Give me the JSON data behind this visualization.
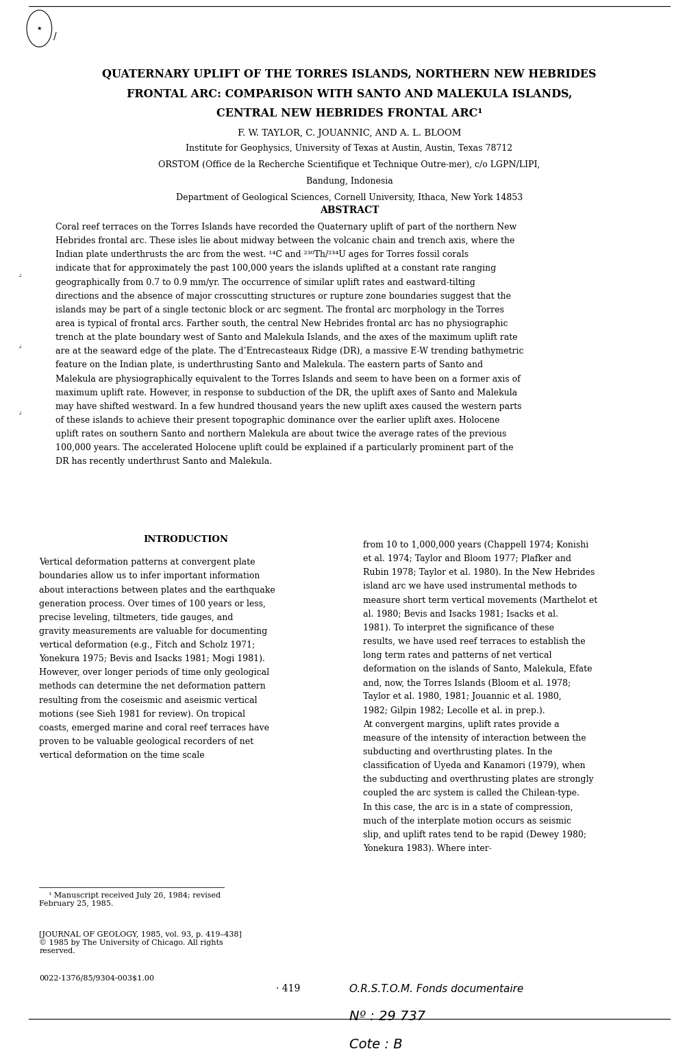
{
  "background_color": "#ffffff",
  "page_width": 10.2,
  "page_height": 15.31,
  "title_lines": [
    "QUATERNARY UPLIFT OF THE TORRES ISLANDS, NORTHERN NEW HEBRIDES",
    "FRONTAL ARC: COMPARISON WITH SANTO AND MALEKULA ISLANDS,",
    "CENTRAL NEW HEBRIDES FRONTAL ARC¹"
  ],
  "authors": "F. W. TAYLOR, C. JOUANNIC, AND A. L. BLOOM",
  "affiliations": [
    "Institute for Geophysics, University of Texas at Austin, Austin, Texas 78712",
    "ORSTOM (Office de la Recherche Scientifique et Technique Outre-mer), c/o LGPN/LIPI,",
    "Bandung, Indonesia",
    "Department of Geological Sciences, Cornell University, Ithaca, New York 14853"
  ],
  "abstract_header": "ABSTRACT",
  "abstract_text": "    Coral reef terraces on the Torres Islands have recorded the Quaternary uplift of part of the northern New Hebrides frontal arc. These isles lie about midway between the volcanic chain and trench axis, where the Indian plate underthrusts the arc from the west. ¹⁴C and ²³⁰Th/²³⁴U ages for Torres fossil corals indicate that for approximately the past 100,000 years the islands uplifted at a constant rate ranging geographically from 0.7 to 0.9 mm/yr. The occurrence of similar uplift rates and eastward-tilting directions and the absence of major crosscutting structures or rupture zone boundaries suggest that the islands may be part of a single tectonic block or arc segment. The frontal arc morphology in the Torres area is typical of frontal arcs. Farther south, the central New Hebrides frontal arc has no physiographic trench at the plate boundary west of Santo and Malekula Islands, and the axes of the maximum uplift rate are at the seaward edge of the plate. The d’Entrecasteaux Ridge (DR), a massive E-W trending bathymetric feature on the Indian plate, is underthrusting Santo and Malekula. The eastern parts of Santo and Malekula are physiographically equivalent to the Torres Islands and seem to have been on a former axis of maximum uplift rate. However, in response to subduction of the DR, the uplift axes of Santo and Malekula may have shifted westward. In a few hundred thousand years the new uplift axes caused the western parts of these islands to achieve their present topographic dominance over the earlier uplift axes. Holocene uplift rates on southern Santo and northern Malekula are about twice the average rates of the previous 100,000 years. The accelerated Holocene uplift could be explained if a particularly prominent part of the DR has recently underthrust Santo and Malekula.",
  "intro_header": "INTRODUCTION",
  "intro_left": "    Vertical deformation patterns at convergent plate boundaries allow us to infer important information about interactions between plates and the earthquake generation process. Over times of 100 years or less, precise leveling, tiltmeters, tide gauges, and gravity measurements are valuable for documenting vertical deformation (e.g., Fitch and Scholz 1971; Yonekura 1975; Bevis and Isacks 1981; Mogi 1981). However, over longer periods of time only geological methods can determine the net deformation pattern resulting from the coseismic and aseismic vertical motions (see Sieh 1981 for review). On tropical coasts, emerged marine and coral reef terraces have proven to be valuable geological recorders of net vertical deformation on the time scale",
  "intro_right": "from 10 to 1,000,000 years (Chappell 1974; Konishi et al. 1974; Taylor and Bloom 1977; Plafker and Rubin 1978; Taylor et al. 1980). In the New Hebrides island arc we have used instrumental methods to measure short term vertical movements (Marthelot et al. 1980; Bevis and Isacks 1981; Isacks et al. 1981). To interpret the significance of these results, we have used reef terraces to establish the long term rates and patterns of net vertical deformation on the islands of Santo, Malekula, Efate and, now, the Torres Islands (Bloom et al. 1978; Taylor et al. 1980, 1981; Jouannic et al. 1980, 1982; Gilpin 1982; Lecolle et al. in prep.).\n    At convergent margins, uplift rates provide a measure of the intensity of interaction between the subducting and overthrusting plates. In the classification of Uyeda and Kanamori (1979), when the subducting and overthrusting plates are strongly coupled the arc system is called the Chilean-type. In this case, the arc is in a state of compression, much of the interplate motion occurs as seismic slip, and uplift rates tend to be rapid (Dewey 1980; Yonekura 1983). Where inter-",
  "footnote1": "    ¹ Manuscript received July 26, 1984; revised\nFebruary 25, 1985.",
  "footnote2": "[JOURNAL OF GEOLOGY, 1985, vol. 93, p. 419–438]\n© 1985 by The University of Chicago. All rights\nreserved.",
  "footnote3": "0022-1376/85/9304-003$1.00",
  "page_number": "· 419",
  "stamp_line1": "O.R.S.T.O.M. Fonds documentaire",
  "stamp_line2": "Nº : 29 737",
  "stamp_line3": "Cote : B"
}
